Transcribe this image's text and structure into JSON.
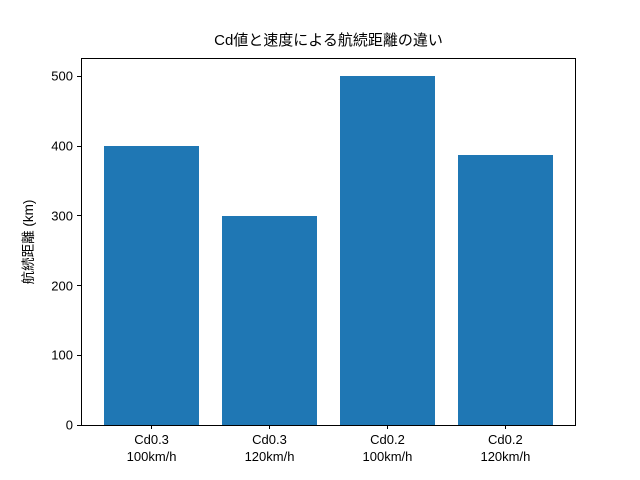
{
  "chart_data": {
    "type": "bar",
    "title": "Cd値と速度による航続距離の違い",
    "xlabel": "",
    "ylabel": "航続距離 (km)",
    "categories": [
      "Cd0.3\n100km/h",
      "Cd0.3\n120km/h",
      "Cd0.2\n100km/h",
      "Cd0.2\n120km/h"
    ],
    "values": [
      400,
      300,
      500,
      388
    ],
    "yticks": [
      0,
      100,
      200,
      300,
      400,
      500
    ],
    "ylim": [
      0,
      525
    ],
    "xlim": [
      -0.59,
      3.59
    ],
    "bar_width": 0.8,
    "bar_color": "#1f77b4",
    "axis_color": "#000000",
    "background_color": "#ffffff",
    "grid": false,
    "legend": null
  }
}
